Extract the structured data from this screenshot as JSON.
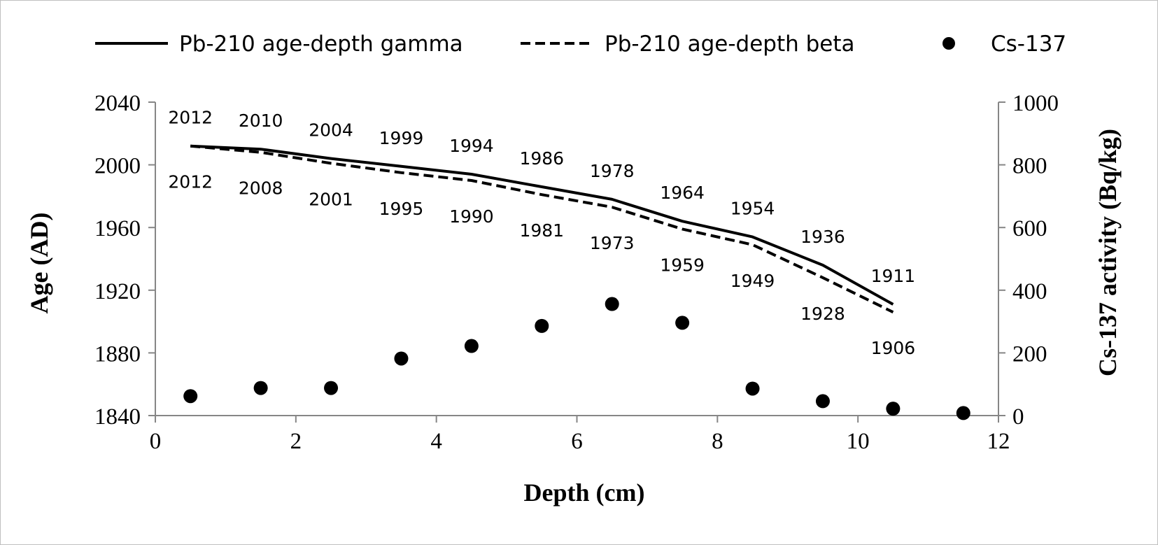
{
  "chart_data": {
    "type": "line",
    "xlabel": "Depth (cm)",
    "ylabel": "Age (AD)",
    "y2label": "Cs-137 activity (Bq/kg)",
    "xlim": [
      0,
      12
    ],
    "ylim": [
      1840,
      2040
    ],
    "y2lim": [
      0,
      1000
    ],
    "x_ticks": [
      0,
      2,
      4,
      6,
      8,
      10,
      12
    ],
    "y_ticks": [
      1840,
      1880,
      1920,
      1960,
      2000,
      2040
    ],
    "y2_ticks": [
      0,
      200,
      400,
      600,
      800,
      1000
    ],
    "grid": false,
    "legend_position": "top",
    "series": [
      {
        "name": "Pb-210 age-depth gamma",
        "style": "solid",
        "axis": "left",
        "x": [
          0.5,
          1.5,
          2.5,
          3.5,
          4.5,
          5.5,
          6.5,
          7.5,
          8.5,
          9.5,
          10.5
        ],
        "y": [
          2012,
          2010,
          2004,
          1999,
          1994,
          1986,
          1978,
          1964,
          1954,
          1936,
          1911
        ],
        "labels": [
          "2012",
          "2010",
          "2004",
          "1999",
          "1994",
          "1986",
          "1978",
          "1964",
          "1954",
          "1936",
          "1911"
        ]
      },
      {
        "name": "Pb-210 age-depth beta",
        "style": "dashed",
        "axis": "left",
        "x": [
          0.5,
          1.5,
          2.5,
          3.5,
          4.5,
          5.5,
          6.5,
          7.5,
          8.5,
          9.5,
          10.5
        ],
        "y": [
          2012,
          2008,
          2001,
          1995,
          1990,
          1981,
          1973,
          1959,
          1949,
          1928,
          1906
        ],
        "labels": [
          "2012",
          "2008",
          "2001",
          "1995",
          "1990",
          "1981",
          "1973",
          "1959",
          "1949",
          "1928",
          "1906"
        ]
      },
      {
        "name": "Cs-137",
        "style": "marker",
        "axis": "right",
        "x": [
          0.5,
          1.5,
          2.5,
          3.5,
          4.5,
          5.5,
          6.5,
          7.5,
          8.5,
          9.5,
          10.5,
          11.5
        ],
        "y": [
          62,
          88,
          88,
          182,
          222,
          286,
          356,
          296,
          86,
          46,
          22,
          8
        ]
      }
    ]
  },
  "colors": {
    "line": "#000000",
    "axis": "#868686",
    "frame": "#bfbfbf"
  }
}
